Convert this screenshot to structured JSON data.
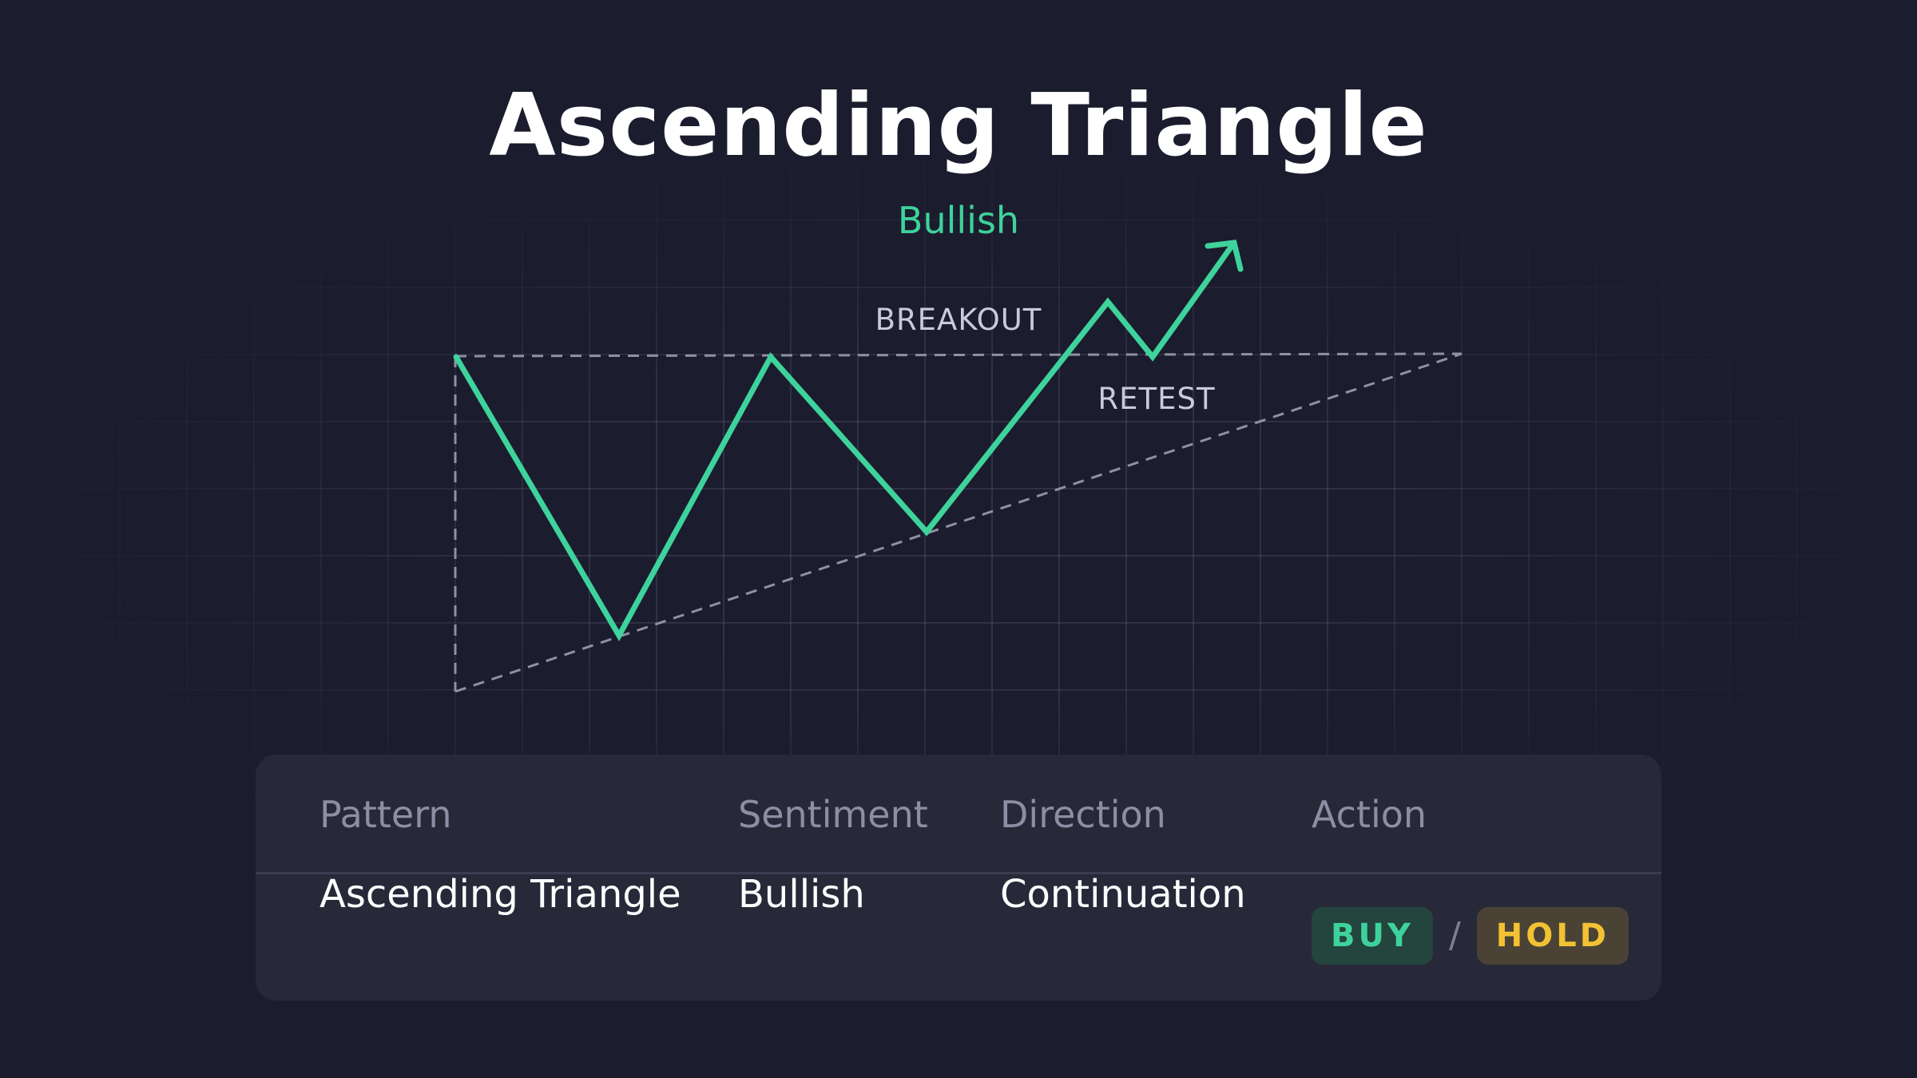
{
  "title": "Ascending Triangle",
  "subtitle": "Bullish",
  "colors": {
    "background": "#1b1c2d",
    "accent_green": "#3ed39c",
    "accent_yellow": "#f2c232",
    "dashed_lines": "#8f91a3",
    "card": "#272939"
  },
  "diagram": {
    "labels": {
      "breakout": "BREAKOUT",
      "retest": "RETEST"
    }
  },
  "table": {
    "headers": {
      "pattern": "Pattern",
      "sentiment": "Sentiment",
      "direction": "Direction",
      "action": "Action"
    },
    "row": {
      "pattern": "Ascending Triangle",
      "sentiment": "Bullish",
      "direction": "Continuation",
      "action_primary": "BUY",
      "action_separator": "/",
      "action_secondary": "HOLD"
    }
  }
}
